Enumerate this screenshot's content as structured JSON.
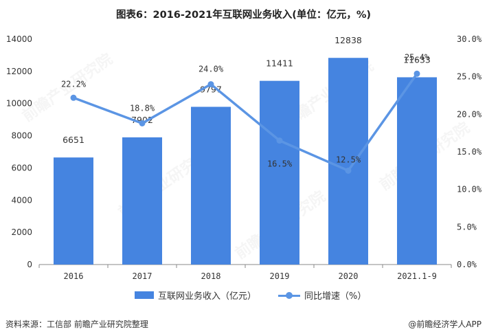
{
  "title": "图表6：2016-2021年互联网业务收入(单位：亿元，%)",
  "source": "资料来源：工信部 前瞻产业研究院整理",
  "brand": "@前瞻经济学人APP",
  "watermark": "前瞻产业研究院",
  "colors": {
    "bar": "#4584E0",
    "line": "#5B95E4",
    "axis": "#888888"
  },
  "chart_data": {
    "type": "bar",
    "categories": [
      "2016",
      "2017",
      "2018",
      "2019",
      "2020",
      "2021.1-9"
    ],
    "series": [
      {
        "name": "互联网业务收入（亿元）",
        "type": "bar",
        "axis": "left",
        "values": [
          6651,
          7902,
          9797,
          11411,
          12838,
          11633
        ],
        "labels": [
          "6651",
          "7902",
          "9797",
          "11411",
          "12838",
          "11633"
        ]
      },
      {
        "name": "同比增速（%）",
        "type": "line",
        "axis": "right",
        "values": [
          22.2,
          18.8,
          24.0,
          16.5,
          12.5,
          25.4
        ],
        "labels": [
          "22.2%",
          "18.8%",
          "24.0%",
          "16.5%",
          "12.5%",
          "25.4%"
        ]
      }
    ],
    "y_left": {
      "min": 0,
      "max": 14000,
      "ticks": [
        "0",
        "2000",
        "4000",
        "6000",
        "8000",
        "10000",
        "12000",
        "14000"
      ]
    },
    "y_right": {
      "min": 0,
      "max": 30,
      "ticks": [
        "0.0%",
        "5.0%",
        "10.0%",
        "15.0%",
        "20.0%",
        "25.0%",
        "30.0%"
      ]
    },
    "grid": false,
    "legend_position": "bottom"
  }
}
